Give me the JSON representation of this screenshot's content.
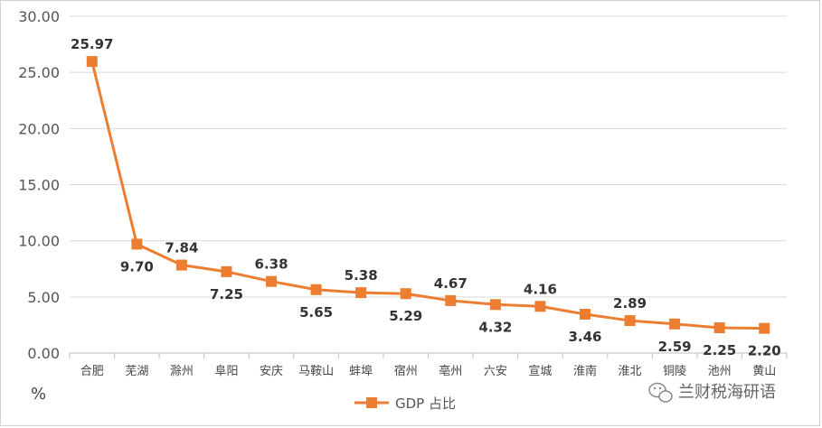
{
  "chart_data": {
    "type": "line",
    "categories": [
      "合肥",
      "芜湖",
      "滁州",
      "阜阳",
      "安庆",
      "马鞍山",
      "蚌埠",
      "宿州",
      "亳州",
      "六安",
      "宣城",
      "淮南",
      "淮北",
      "铜陵",
      "池州",
      "黄山"
    ],
    "series": [
      {
        "name": "GDP 占比",
        "values": [
          25.97,
          9.7,
          7.84,
          7.25,
          6.38,
          5.65,
          5.38,
          5.29,
          4.67,
          4.32,
          4.16,
          3.46,
          2.89,
          2.59,
          2.25,
          2.2
        ],
        "labels": [
          "25.97",
          "9.70",
          "7.84",
          "7.25",
          "6.38",
          "5.65",
          "5.38",
          "5.29",
          "4.67",
          "4.32",
          "4.16",
          "3.46",
          "2.89",
          "2.59",
          "2.25",
          "2.20"
        ],
        "color": "#ED7D31"
      }
    ],
    "ylim": [
      0,
      30
    ],
    "yticks": [
      "0.00",
      "5.00",
      "10.00",
      "15.00",
      "20.00",
      "25.00",
      "30.00"
    ],
    "ylabel": "%",
    "xlabel": "",
    "title": "",
    "grid": true,
    "legend_position": "bottom",
    "gridColor": "#D9D9D9",
    "axisColor": "#BFBFBF"
  },
  "watermark": {
    "icon": "wechat-icon",
    "text": "兰财税海研语"
  }
}
